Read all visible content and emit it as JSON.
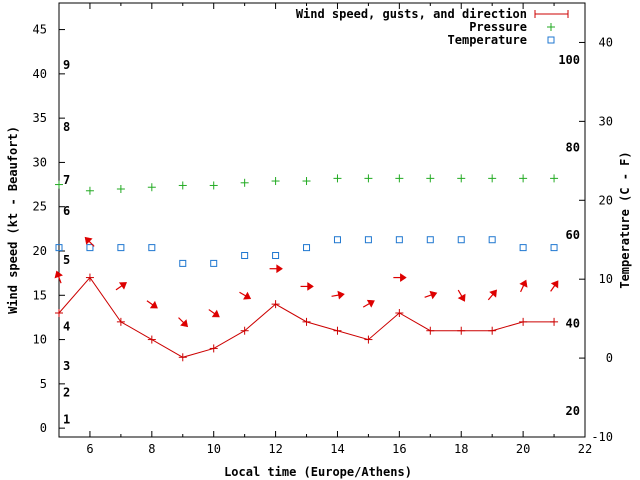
{
  "chart_data": {
    "type": "line",
    "xlabel": "Local time (Europe/Athens)",
    "ylabel_left": "Wind speed (kt - Beaufort)",
    "ylabel_right": "Temperature (C - F)",
    "xlim": [
      5,
      22
    ],
    "ylim_left": [
      -1,
      48
    ],
    "ylim_right": [
      -10,
      45
    ],
    "x_ticks": [
      6,
      8,
      10,
      12,
      14,
      16,
      18,
      20,
      22
    ],
    "y_ticks_left": [
      0,
      5,
      10,
      15,
      20,
      25,
      30,
      35,
      40,
      45
    ],
    "y_ticks_right": [
      -10,
      0,
      10,
      20,
      30,
      40
    ],
    "beaufort_labels": [
      {
        "label": "1",
        "kt": 1
      },
      {
        "label": "2",
        "kt": 4
      },
      {
        "label": "3",
        "kt": 7
      },
      {
        "label": "4",
        "kt": 11.5
      },
      {
        "label": "5",
        "kt": 19
      },
      {
        "label": "6",
        "kt": 24.5
      },
      {
        "label": "7",
        "kt": 28
      },
      {
        "label": "8",
        "kt": 34
      },
      {
        "label": "9",
        "kt": 41
      }
    ],
    "fahrenheit_labels": [
      {
        "label": "20",
        "celsius": -6.7
      },
      {
        "label": "40",
        "celsius": 4.4
      },
      {
        "label": "60",
        "celsius": 15.6
      },
      {
        "label": "80",
        "celsius": 26.7
      },
      {
        "label": "100",
        "celsius": 37.8
      }
    ],
    "legend": [
      {
        "name": "Wind speed, gusts, and direction",
        "marker": "line-plus",
        "color": "#cc0000"
      },
      {
        "name": "Pressure",
        "marker": "plus",
        "color": "#22aa22"
      },
      {
        "name": "Temperature",
        "marker": "square",
        "color": "#1f77d0"
      }
    ],
    "series": [
      {
        "name": "Wind speed, gusts, and direction",
        "axis": "left",
        "color": "#cc0000",
        "x": [
          5,
          6,
          7,
          8,
          9,
          10,
          11,
          12,
          13,
          14,
          15,
          16,
          17,
          18,
          19,
          20,
          21
        ],
        "values": [
          13,
          17,
          12,
          10,
          8,
          9,
          11,
          14,
          12,
          11,
          10,
          13,
          11,
          11,
          11,
          12,
          12
        ]
      },
      {
        "name": "Pressure",
        "axis": "left",
        "color": "#22aa22",
        "x": [
          5,
          6,
          7,
          8,
          9,
          10,
          11,
          12,
          13,
          14,
          15,
          16,
          17,
          18,
          19,
          20,
          21
        ],
        "values": [
          27.5,
          26.8,
          27.0,
          27.2,
          27.4,
          27.4,
          27.7,
          27.9,
          27.9,
          28.2,
          28.2,
          28.2,
          28.2,
          28.2,
          28.2,
          28.2,
          28.2
        ]
      },
      {
        "name": "Temperature",
        "axis": "right",
        "color": "#1f77d0",
        "x": [
          5,
          6,
          7,
          8,
          9,
          10,
          11,
          12,
          13,
          14,
          15,
          16,
          17,
          18,
          19,
          20,
          21
        ],
        "values": [
          14,
          14,
          14,
          14,
          12,
          12,
          13,
          13,
          14,
          15,
          15,
          15,
          15,
          15,
          15,
          14,
          14
        ]
      }
    ],
    "wind_direction_arrows": {
      "x": [
        5,
        6,
        7,
        8,
        9,
        10,
        11,
        12,
        13,
        14,
        15,
        16,
        17,
        18,
        19,
        20,
        21
      ],
      "y": [
        17,
        21,
        16,
        14,
        12,
        13,
        15,
        18,
        16,
        15,
        14,
        17,
        15,
        15,
        15,
        16,
        16
      ],
      "angle_deg": [
        -110,
        -135,
        -35,
        35,
        45,
        35,
        30,
        0,
        0,
        -10,
        -30,
        0,
        -20,
        60,
        -50,
        -65,
        -55
      ]
    },
    "grid": false,
    "legend_position": "top-right"
  }
}
